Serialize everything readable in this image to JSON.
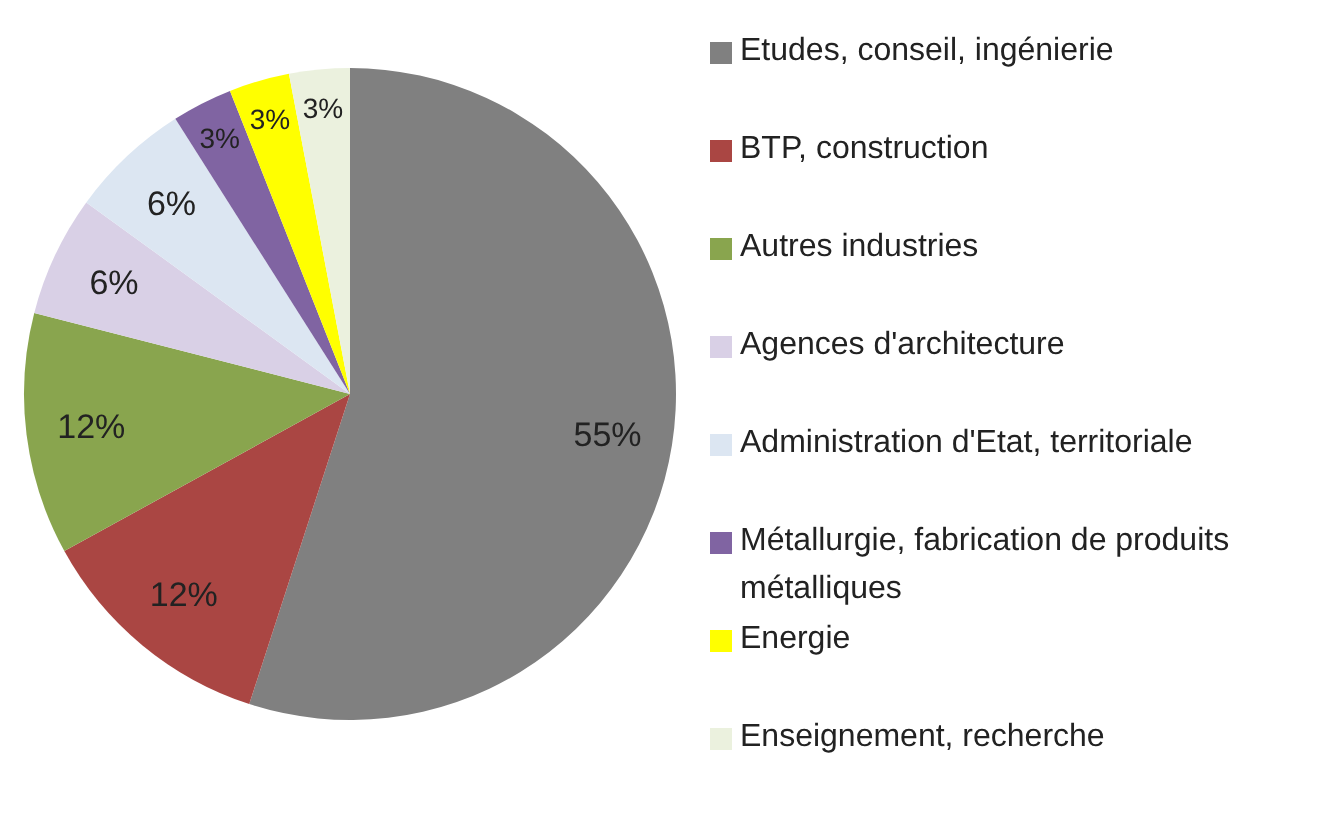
{
  "chart_data": {
    "type": "pie",
    "categories": [
      "Etudes, conseil, ingénierie",
      "BTP, construction",
      "Autres industries",
      "Agences d'architecture",
      "Administration d'Etat, territoriale",
      "Métallurgie, fabrication de produits métalliques",
      "Energie",
      "Enseignement, recherche"
    ],
    "values": [
      55,
      12,
      12,
      6,
      6,
      3,
      3,
      3
    ],
    "value_labels": [
      "55%",
      "12%",
      "12%",
      "6%",
      "6%",
      "3%",
      "3%",
      "3%"
    ],
    "colors": [
      "#808080",
      "#aa4643",
      "#89a54e",
      "#d9d0e6",
      "#dce6f2",
      "#8064a2",
      "#ffff00",
      "#ebf1de"
    ],
    "legend": "right"
  }
}
